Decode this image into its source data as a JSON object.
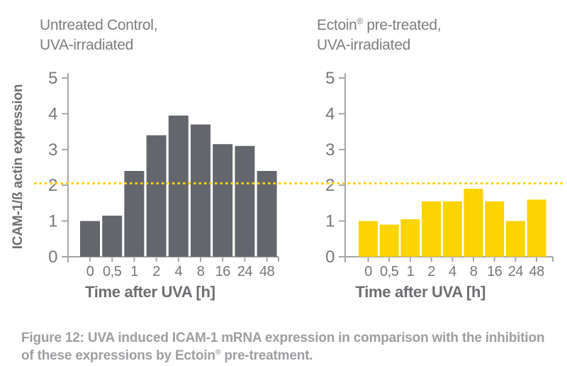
{
  "colors": {
    "background": "#ffffff",
    "bar_gray": "#64666d",
    "bar_yellow": "#fcd303",
    "threshold_yellow": "#fcd303",
    "axis_line": "#a4a6a9",
    "tick_text": "#76777b",
    "title_text": "#7b7d80",
    "axis_title_text": "#6d6e71",
    "caption_text": "#9c9ea1"
  },
  "chart_data": [
    {
      "type": "bar",
      "title": "Untreated Control, UVA-irradiated",
      "title_line1": "Untreated Control,",
      "title_line2": "UVA-irradiated",
      "categories": [
        "0",
        "0,5",
        "1",
        "2",
        "4",
        "8",
        "16",
        "24",
        "48"
      ],
      "values": [
        1.0,
        1.15,
        2.4,
        3.4,
        3.95,
        3.7,
        3.15,
        3.1,
        2.4
      ],
      "xlabel": "Time after UVA [h]",
      "ylabel": "ICAM-1/ß actin expression",
      "ylim": [
        0,
        5
      ],
      "yticks": [
        0,
        1,
        2,
        3,
        4,
        5
      ],
      "grid": false,
      "bar_color": "#64666d",
      "threshold": {
        "value": 2.05,
        "color": "#fcd303",
        "style": "dotted"
      }
    },
    {
      "type": "bar",
      "title": "Ectoin® pre-treated, UVA-irradiated",
      "title_brand": "Ectoin",
      "title_reg": "®",
      "title_line1_rest": " pre-treated,",
      "title_line2": "UVA-irradiated",
      "categories": [
        "0",
        "0,5",
        "1",
        "2",
        "4",
        "8",
        "16",
        "24",
        "48"
      ],
      "values": [
        1.0,
        0.9,
        1.05,
        1.55,
        1.55,
        1.9,
        1.55,
        1.0,
        1.6
      ],
      "xlabel": "Time after UVA [h]",
      "ylim": [
        0,
        5
      ],
      "yticks": [
        0,
        1,
        2,
        3,
        4,
        5
      ],
      "grid": false,
      "bar_color": "#fcd303",
      "threshold": {
        "value": 2.05,
        "color": "#fcd303",
        "style": "dotted"
      }
    }
  ],
  "caption": {
    "line1": "Figure 12: UVA induced ICAM-1 mRNA expression in comparison with the inhibition",
    "line2_pre": "of these expressions by Ectoin",
    "line2_reg": "®",
    "line2_post": " pre-treatment."
  }
}
